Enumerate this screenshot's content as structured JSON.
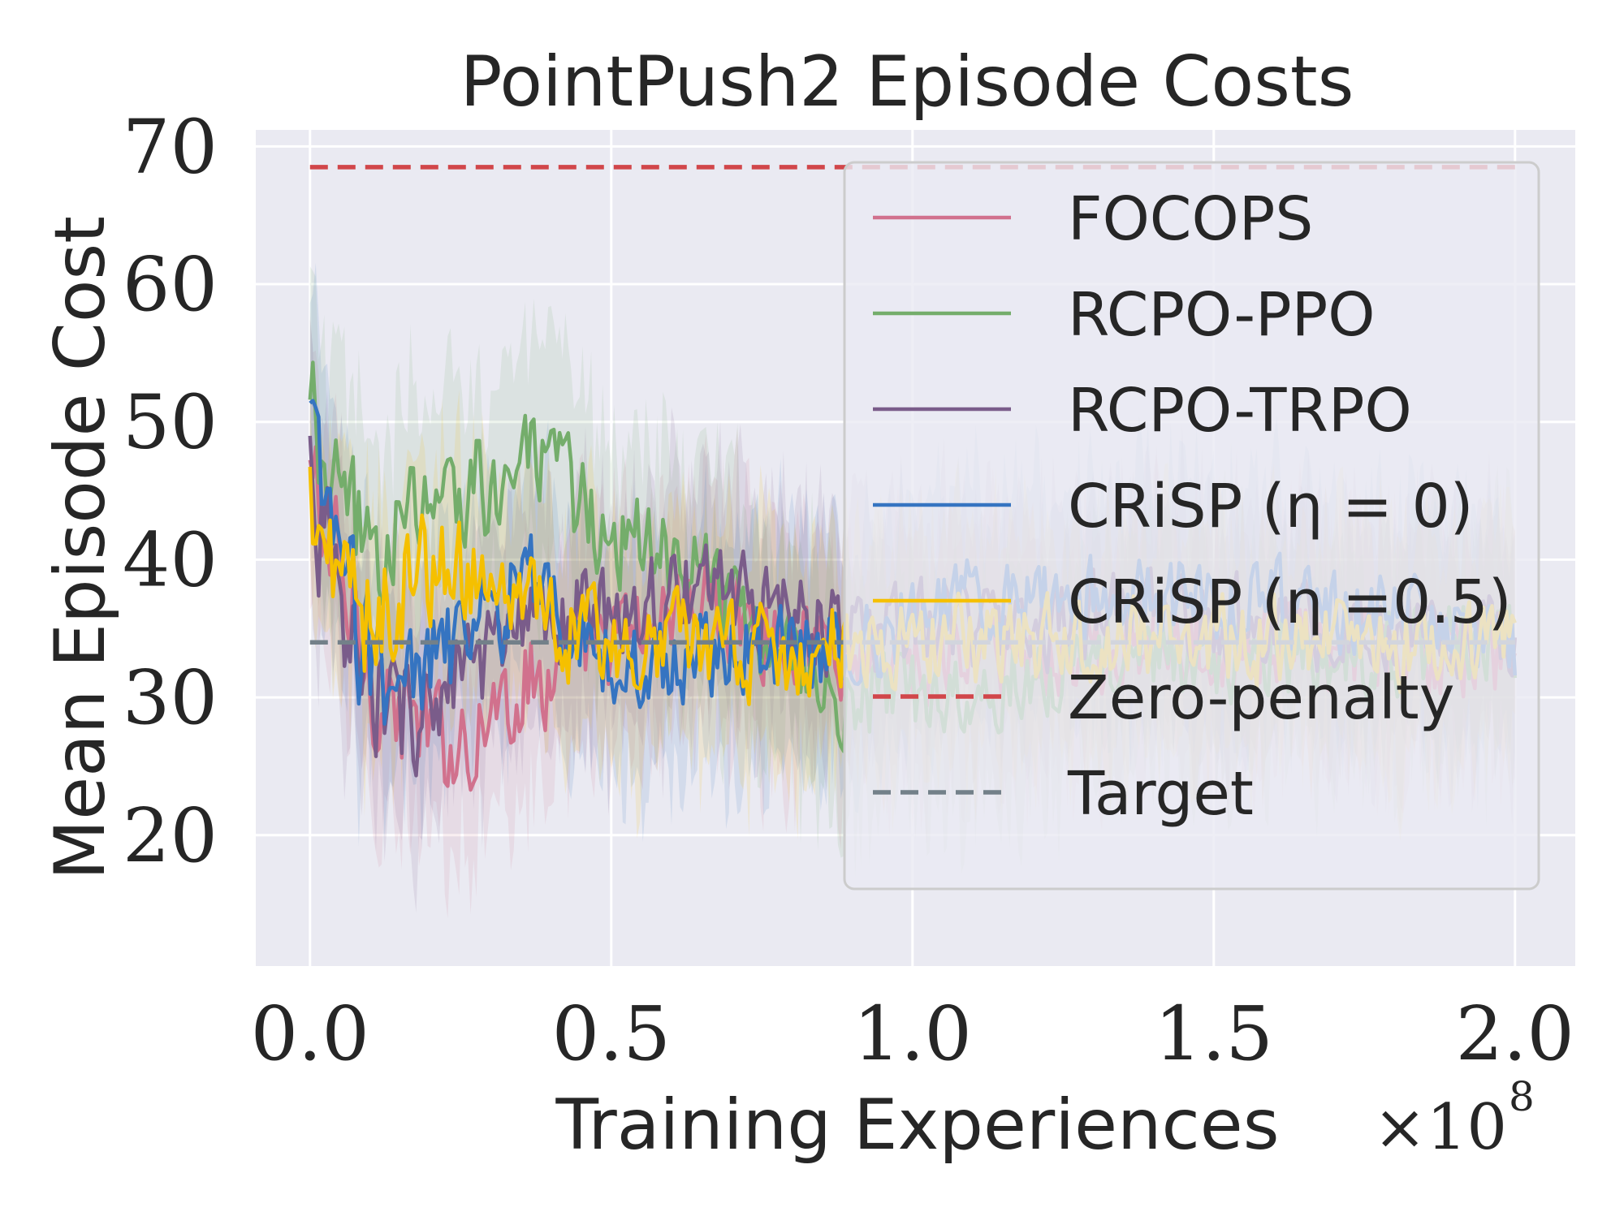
{
  "chart_data": {
    "type": "line",
    "title": "PointPush2 Episode Costs",
    "xlabel": "Training Experiences",
    "ylabel": "Mean Episode Cost",
    "x_scale_label": "×10",
    "x_scale_exponent": "8",
    "xlim": [
      -0.09,
      2.1
    ],
    "ylim": [
      10.5,
      71.2
    ],
    "xticks": [
      0.0,
      0.5,
      1.0,
      1.5,
      2.0
    ],
    "xtick_labels": [
      "0.0",
      "0.5",
      "1.0",
      "1.5",
      "2.0"
    ],
    "yticks": [
      20,
      30,
      40,
      50,
      60,
      70
    ],
    "ytick_labels": [
      "20",
      "30",
      "40",
      "50",
      "60",
      "70"
    ],
    "grid": true,
    "legend_position": "right",
    "colors": {
      "background": "#eaeaf2",
      "grid": "#ffffff",
      "FOCOPS": "#d1718d",
      "RCPO-PPO": "#74ad6b",
      "RCPO-TRPO": "#7a5c8a",
      "CRiSP_eta0": "#3574c1",
      "CRiSP_eta05": "#f5c000",
      "zero_penalty": "#d1464a",
      "target": "#738089"
    },
    "series": [
      {
        "name": "FOCOPS",
        "color": "#d1718d",
        "style": "solid",
        "x": [
          0.0,
          0.05,
          0.1,
          0.15,
          0.2,
          0.25,
          0.3,
          0.35,
          0.4,
          0.45,
          0.5,
          0.55,
          0.6,
          0.65,
          0.7,
          0.75,
          0.8,
          0.85,
          0.9,
          0.95,
          1.0,
          1.1,
          1.2,
          1.3,
          1.4,
          1.5,
          1.6,
          1.7,
          1.8,
          1.9,
          2.0
        ],
        "y": [
          46,
          38,
          32,
          29,
          27,
          27,
          29,
          31,
          32,
          33,
          34,
          35,
          36,
          37,
          36,
          35,
          34,
          34,
          33,
          33,
          33,
          33,
          33,
          33,
          34,
          34,
          34,
          33,
          33,
          33,
          33
        ]
      },
      {
        "name": "RCPO-PPO",
        "color": "#74ad6b",
        "style": "solid",
        "x": [
          0.0,
          0.05,
          0.1,
          0.15,
          0.2,
          0.25,
          0.3,
          0.35,
          0.4,
          0.45,
          0.5,
          0.55,
          0.6,
          0.65,
          0.7,
          0.75,
          0.8,
          0.85,
          0.9,
          0.95,
          1.0,
          1.1,
          1.2,
          1.3,
          1.4,
          1.5,
          1.6,
          1.7,
          1.8,
          1.9,
          2.0
        ],
        "y": [
          50,
          43,
          41,
          42,
          43,
          45,
          46,
          47,
          46,
          44,
          42,
          41,
          40,
          39,
          37,
          35,
          33,
          31,
          30,
          30,
          30,
          31,
          32,
          32,
          33,
          33,
          33,
          33,
          33,
          34,
          34
        ]
      },
      {
        "name": "RCPO-TRPO",
        "color": "#7a5c8a",
        "style": "solid",
        "x": [
          0.0,
          0.05,
          0.1,
          0.15,
          0.2,
          0.25,
          0.3,
          0.35,
          0.4,
          0.45,
          0.5,
          0.55,
          0.6,
          0.65,
          0.7,
          0.75,
          0.8,
          0.85,
          0.9,
          0.95,
          1.0,
          1.1,
          1.2,
          1.3,
          1.4,
          1.5,
          1.6,
          1.7,
          1.8,
          1.9,
          2.0
        ],
        "y": [
          47,
          35,
          30,
          29,
          30,
          31,
          33,
          34,
          35,
          36,
          36,
          37,
          37,
          38,
          38,
          37,
          36,
          35,
          35,
          35,
          35,
          35,
          35,
          36,
          36,
          36,
          35,
          35,
          35,
          35,
          35
        ]
      },
      {
        "name": "CRiSP (η = 0)",
        "color": "#3574c1",
        "style": "solid",
        "x": [
          0.0,
          0.05,
          0.1,
          0.15,
          0.2,
          0.25,
          0.3,
          0.35,
          0.4,
          0.45,
          0.5,
          0.55,
          0.6,
          0.65,
          0.7,
          0.75,
          0.8,
          0.85,
          0.9,
          0.95,
          1.0,
          1.1,
          1.2,
          1.3,
          1.4,
          1.5,
          1.6,
          1.7,
          1.8,
          1.9,
          2.0
        ],
        "y": [
          49,
          38,
          33,
          31,
          32,
          34,
          36,
          38,
          37,
          35,
          33,
          32,
          32,
          33,
          34,
          34,
          33,
          33,
          34,
          35,
          36,
          37,
          37,
          37,
          37,
          37,
          37,
          36,
          36,
          35,
          33
        ]
      },
      {
        "name": "CRiSP (η =0.5)",
        "color": "#f5c000",
        "style": "solid",
        "x": [
          0.0,
          0.05,
          0.1,
          0.15,
          0.2,
          0.25,
          0.3,
          0.35,
          0.4,
          0.45,
          0.5,
          0.55,
          0.6,
          0.65,
          0.7,
          0.75,
          0.8,
          0.85,
          0.9,
          0.95,
          1.0,
          1.1,
          1.2,
          1.3,
          1.4,
          1.5,
          1.6,
          1.7,
          1.8,
          1.9,
          2.0
        ],
        "y": [
          44,
          36,
          36,
          38,
          40,
          40,
          38,
          36,
          35,
          34,
          34,
          34,
          34,
          33,
          33,
          33,
          33,
          34,
          34,
          34,
          34,
          34,
          34,
          34,
          34,
          34,
          34,
          34,
          34,
          34,
          34
        ]
      },
      {
        "name": "Zero-penalty",
        "color": "#d1464a",
        "style": "dashed",
        "x": [
          0.0,
          2.0
        ],
        "y": [
          68.5,
          68.5
        ]
      },
      {
        "name": "Target",
        "color": "#738089",
        "style": "dashed",
        "x": [
          0.0,
          2.0
        ],
        "y": [
          34.0,
          34.0
        ]
      }
    ],
    "legend": [
      {
        "label": "FOCOPS",
        "color": "#d1718d",
        "style": "solid"
      },
      {
        "label": "RCPO-PPO",
        "color": "#74ad6b",
        "style": "solid"
      },
      {
        "label": "RCPO-TRPO",
        "color": "#7a5c8a",
        "style": "solid"
      },
      {
        "label": "CRiSP (η = 0)",
        "color": "#3574c1",
        "style": "solid"
      },
      {
        "label": "CRiSP (η =0.5)",
        "color": "#f5c000",
        "style": "solid"
      },
      {
        "label": "Zero-penalty",
        "color": "#d1464a",
        "style": "dashed"
      },
      {
        "label": "Target",
        "color": "#738089",
        "style": "dashed"
      }
    ]
  }
}
